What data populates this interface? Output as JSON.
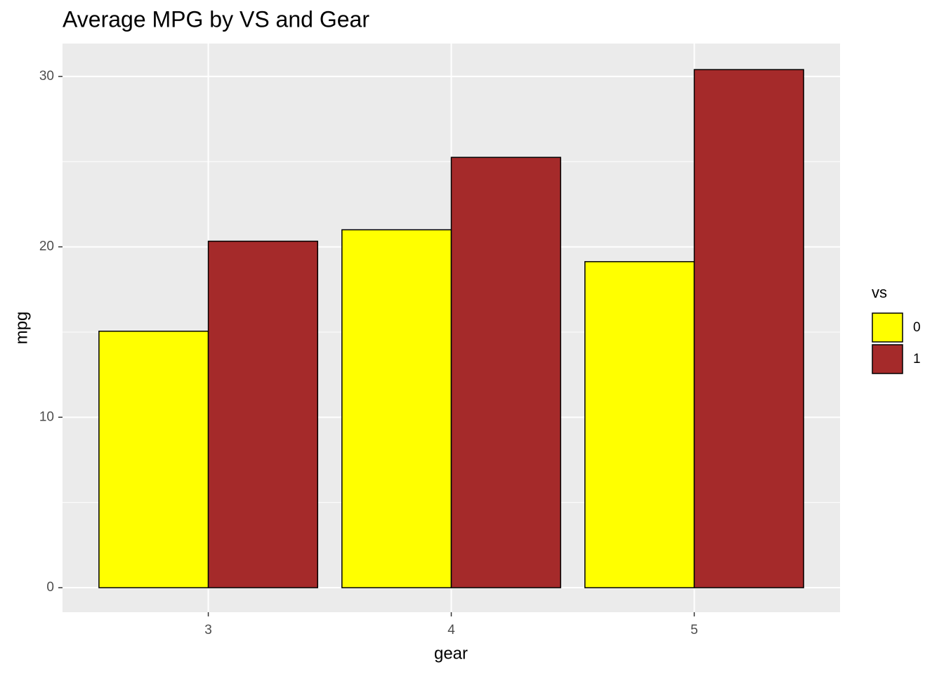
{
  "chart_data": {
    "type": "bar",
    "title": "Average MPG by VS and Gear",
    "x_label": "gear",
    "y_label": "mpg",
    "categories": [
      "3",
      "4",
      "5"
    ],
    "legend_title": "vs",
    "series": [
      {
        "name": "0",
        "color": "#ffff00",
        "values": [
          15.05,
          21.0,
          19.13
        ]
      },
      {
        "name": "1",
        "color": "#a52a2a",
        "values": [
          20.33,
          25.25,
          30.4
        ]
      }
    ],
    "ylim": [
      -1.44,
      31.93
    ],
    "yticks": [
      0,
      10,
      20,
      30
    ],
    "grid": true,
    "legend": "right"
  }
}
